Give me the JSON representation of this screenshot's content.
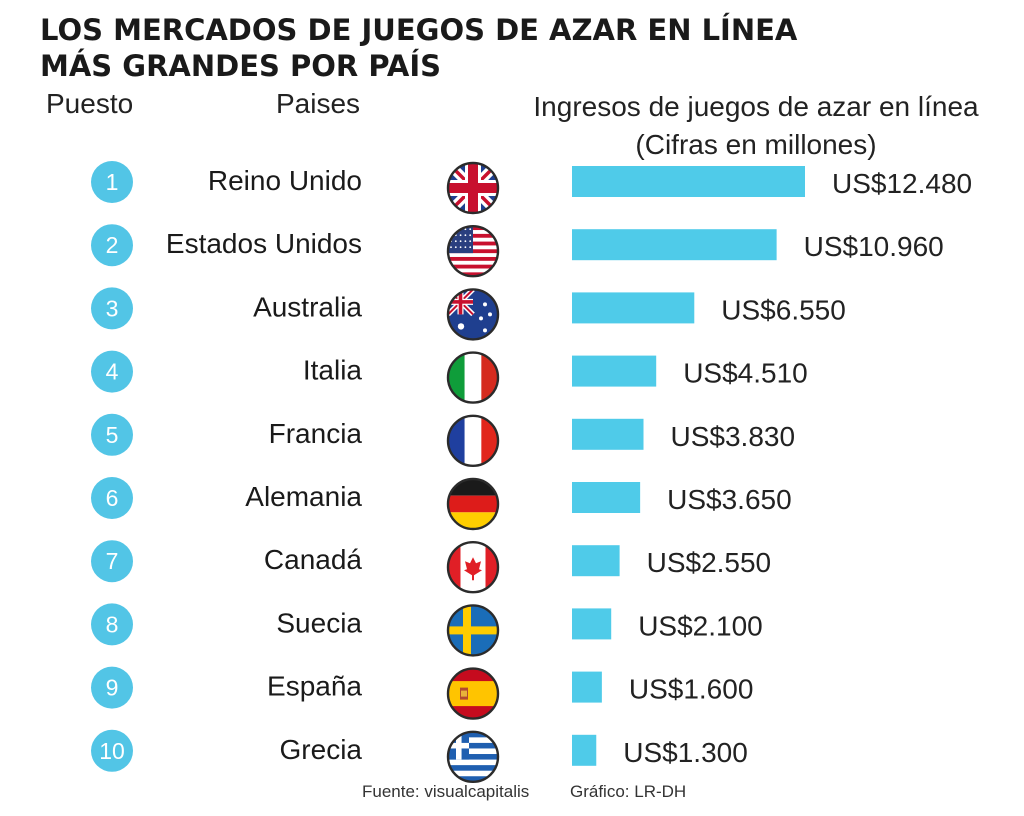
{
  "title_line1": "LOS MERCADOS DE JUEGOS DE AZAR EN LÍNEA",
  "title_line2": "MÁS GRANDES POR PAÍS",
  "headers": {
    "rank": "Puesto",
    "country": "Paises",
    "revenue_line1": "Ingresos de juegos de azar en línea",
    "revenue_line2": "(Cifras en millones)"
  },
  "footer": {
    "source": "Fuente: visualcapitalis",
    "credit": "Gráfico: LR-DH"
  },
  "colors": {
    "bar": "#4fcbe9",
    "rank_circle": "#52c5e6",
    "text": "#1a1a1a"
  },
  "chart_data": {
    "type": "bar",
    "orientation": "horizontal",
    "title": "LOS MERCADOS DE JUEGOS DE AZAR EN LÍNEA MÁS GRANDES POR PAÍS",
    "ylabel": "Ingresos de juegos de azar en línea (Cifras en millones)",
    "ranks": [
      "1",
      "2",
      "3",
      "4",
      "5",
      "6",
      "7",
      "8",
      "9",
      "10"
    ],
    "categories": [
      "Reino Unido",
      "Estados Unidos",
      "Australia",
      "Italia",
      "Francia",
      "Alemania",
      "Canadá",
      "Suecia",
      "España",
      "Grecia"
    ],
    "flag_icons": [
      "uk-flag-icon",
      "us-flag-icon",
      "australia-flag-icon",
      "italy-flag-icon",
      "france-flag-icon",
      "germany-flag-icon",
      "canada-flag-icon",
      "sweden-flag-icon",
      "spain-flag-icon",
      "greece-flag-icon"
    ],
    "values": [
      12480,
      10960,
      6550,
      4510,
      3830,
      3650,
      2550,
      2100,
      1600,
      1300
    ],
    "value_labels": [
      "US$12.480",
      "US$10.960",
      "US$6.550",
      "US$4.510",
      "US$3.830",
      "US$3.650",
      "US$2.550",
      "US$2.100",
      "US$1.600",
      "US$1.300"
    ],
    "xlim": [
      0,
      12480
    ]
  }
}
